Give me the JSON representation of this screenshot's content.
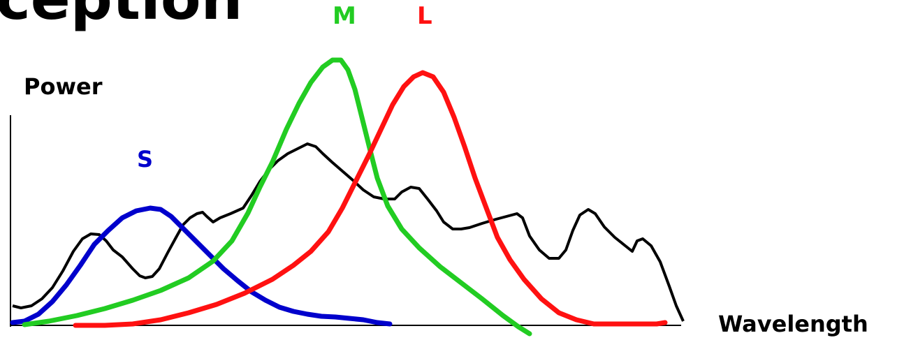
{
  "title": "ception",
  "axes": {
    "y_label": "Power",
    "x_label": "Wavelength"
  },
  "curves": [
    {
      "id": "S",
      "label": "S",
      "color": "#0000cc"
    },
    {
      "id": "M",
      "label": "M",
      "color": "#22cc22"
    },
    {
      "id": "L",
      "label": "L",
      "color": "#ff1111"
    }
  ],
  "spectrum": {
    "color": "#000000"
  }
}
